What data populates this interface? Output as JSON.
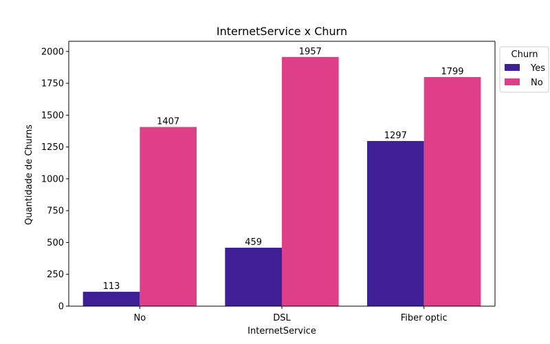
{
  "chart_data": {
    "type": "bar",
    "title": "InternetService x Churn",
    "xlabel": "InternetService",
    "ylabel": "Quantidade de Churns",
    "categories": [
      "No",
      "DSL",
      "Fiber optic"
    ],
    "series": [
      {
        "name": "Yes",
        "values": [
          113,
          459,
          1297
        ],
        "color": "#3f1f95"
      },
      {
        "name": "No",
        "values": [
          1407,
          1957,
          1799
        ],
        "color": "#de3f88"
      }
    ],
    "ylim": [
      0,
      2080
    ],
    "yticks": [
      "0",
      "250",
      "500",
      "750",
      "1000",
      "1250",
      "1500",
      "1750",
      "2000"
    ],
    "grid": false,
    "legend": {
      "title": "Churn",
      "placement": "outside-top-right"
    }
  }
}
